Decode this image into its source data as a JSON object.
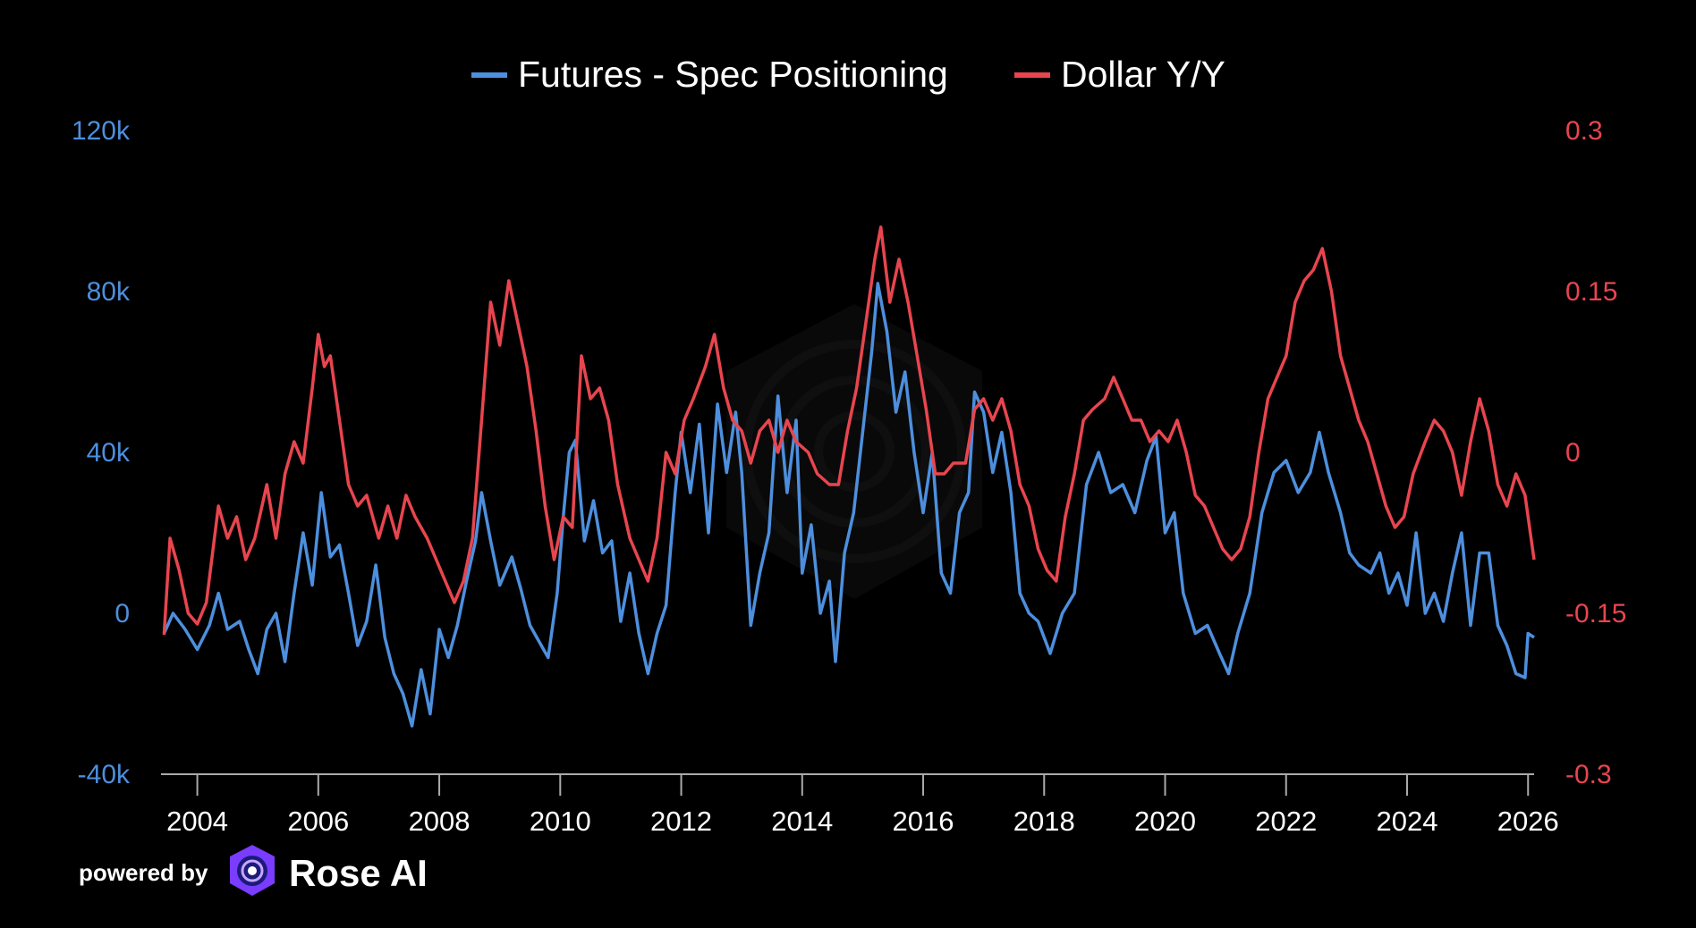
{
  "chart_data": {
    "type": "line",
    "x_range": [
      2003.4,
      2026.1
    ],
    "x_ticks": [
      "2004",
      "2006",
      "2008",
      "2010",
      "2012",
      "2014",
      "2016",
      "2018",
      "2020",
      "2022",
      "2024",
      "2026"
    ],
    "y_left": {
      "range": [
        -40000,
        120000
      ],
      "ticks": [
        "120k",
        "80k",
        "40k",
        "0",
        "-40k"
      ],
      "color": "#4d8fdd"
    },
    "y_right": {
      "range": [
        -0.3,
        0.3
      ],
      "ticks": [
        "0.3",
        "0.15",
        "0",
        "-0.15",
        "-0.3"
      ],
      "color": "#e8454f"
    },
    "legend_position": "top-center",
    "grid": false,
    "series": [
      {
        "name": "Futures - Spec Positioning",
        "axis": "left",
        "color": "#4d8fdd",
        "points": [
          [
            2003.45,
            -5000
          ],
          [
            2003.6,
            0
          ],
          [
            2003.8,
            -4000
          ],
          [
            2004.0,
            -9000
          ],
          [
            2004.2,
            -3000
          ],
          [
            2004.35,
            5000
          ],
          [
            2004.5,
            -4000
          ],
          [
            2004.7,
            -2000
          ],
          [
            2004.85,
            -9000
          ],
          [
            2005.0,
            -15000
          ],
          [
            2005.15,
            -4000
          ],
          [
            2005.3,
            0
          ],
          [
            2005.45,
            -12000
          ],
          [
            2005.6,
            5000
          ],
          [
            2005.75,
            20000
          ],
          [
            2005.9,
            7000
          ],
          [
            2006.05,
            30000
          ],
          [
            2006.2,
            14000
          ],
          [
            2006.35,
            17000
          ],
          [
            2006.5,
            5000
          ],
          [
            2006.65,
            -8000
          ],
          [
            2006.8,
            -2000
          ],
          [
            2006.95,
            12000
          ],
          [
            2007.1,
            -6000
          ],
          [
            2007.25,
            -15000
          ],
          [
            2007.4,
            -20000
          ],
          [
            2007.55,
            -28000
          ],
          [
            2007.7,
            -14000
          ],
          [
            2007.85,
            -25000
          ],
          [
            2008.0,
            -4000
          ],
          [
            2008.15,
            -11000
          ],
          [
            2008.3,
            -3000
          ],
          [
            2008.45,
            8000
          ],
          [
            2008.6,
            18000
          ],
          [
            2008.7,
            30000
          ],
          [
            2008.85,
            18000
          ],
          [
            2009.0,
            7000
          ],
          [
            2009.2,
            14000
          ],
          [
            2009.35,
            6000
          ],
          [
            2009.5,
            -3000
          ],
          [
            2009.65,
            -7000
          ],
          [
            2009.8,
            -11000
          ],
          [
            2009.95,
            5000
          ],
          [
            2010.05,
            24000
          ],
          [
            2010.15,
            40000
          ],
          [
            2010.25,
            43000
          ],
          [
            2010.4,
            18000
          ],
          [
            2010.55,
            28000
          ],
          [
            2010.7,
            15000
          ],
          [
            2010.85,
            18000
          ],
          [
            2011.0,
            -2000
          ],
          [
            2011.15,
            10000
          ],
          [
            2011.3,
            -5000
          ],
          [
            2011.45,
            -15000
          ],
          [
            2011.6,
            -5000
          ],
          [
            2011.75,
            2000
          ],
          [
            2011.9,
            30000
          ],
          [
            2012.0,
            45000
          ],
          [
            2012.15,
            30000
          ],
          [
            2012.3,
            47000
          ],
          [
            2012.45,
            20000
          ],
          [
            2012.6,
            52000
          ],
          [
            2012.75,
            35000
          ],
          [
            2012.9,
            50000
          ],
          [
            2013.0,
            35000
          ],
          [
            2013.15,
            -3000
          ],
          [
            2013.3,
            10000
          ],
          [
            2013.45,
            20000
          ],
          [
            2013.6,
            54000
          ],
          [
            2013.75,
            30000
          ],
          [
            2013.9,
            48000
          ],
          [
            2014.0,
            10000
          ],
          [
            2014.15,
            22000
          ],
          [
            2014.3,
            0
          ],
          [
            2014.45,
            8000
          ],
          [
            2014.55,
            -12000
          ],
          [
            2014.7,
            15000
          ],
          [
            2014.85,
            25000
          ],
          [
            2015.0,
            45000
          ],
          [
            2015.15,
            65000
          ],
          [
            2015.25,
            82000
          ],
          [
            2015.4,
            70000
          ],
          [
            2015.55,
            50000
          ],
          [
            2015.7,
            60000
          ],
          [
            2015.85,
            40000
          ],
          [
            2016.0,
            25000
          ],
          [
            2016.15,
            40000
          ],
          [
            2016.3,
            10000
          ],
          [
            2016.45,
            5000
          ],
          [
            2016.6,
            25000
          ],
          [
            2016.75,
            30000
          ],
          [
            2016.85,
            55000
          ],
          [
            2017.0,
            50000
          ],
          [
            2017.15,
            35000
          ],
          [
            2017.3,
            45000
          ],
          [
            2017.45,
            30000
          ],
          [
            2017.6,
            5000
          ],
          [
            2017.75,
            0
          ],
          [
            2017.9,
            -2000
          ],
          [
            2018.1,
            -10000
          ],
          [
            2018.3,
            0
          ],
          [
            2018.5,
            5000
          ],
          [
            2018.7,
            32000
          ],
          [
            2018.9,
            40000
          ],
          [
            2019.1,
            30000
          ],
          [
            2019.3,
            32000
          ],
          [
            2019.5,
            25000
          ],
          [
            2019.7,
            38000
          ],
          [
            2019.85,
            44000
          ],
          [
            2020.0,
            20000
          ],
          [
            2020.15,
            25000
          ],
          [
            2020.3,
            5000
          ],
          [
            2020.5,
            -5000
          ],
          [
            2020.7,
            -3000
          ],
          [
            2020.9,
            -10000
          ],
          [
            2021.05,
            -15000
          ],
          [
            2021.2,
            -5000
          ],
          [
            2021.4,
            5000
          ],
          [
            2021.6,
            25000
          ],
          [
            2021.8,
            35000
          ],
          [
            2022.0,
            38000
          ],
          [
            2022.2,
            30000
          ],
          [
            2022.4,
            35000
          ],
          [
            2022.55,
            45000
          ],
          [
            2022.7,
            35000
          ],
          [
            2022.9,
            25000
          ],
          [
            2023.05,
            15000
          ],
          [
            2023.2,
            12000
          ],
          [
            2023.4,
            10000
          ],
          [
            2023.55,
            15000
          ],
          [
            2023.7,
            5000
          ],
          [
            2023.85,
            10000
          ],
          [
            2024.0,
            2000
          ],
          [
            2024.15,
            20000
          ],
          [
            2024.3,
            0
          ],
          [
            2024.45,
            5000
          ],
          [
            2024.6,
            -2000
          ],
          [
            2024.75,
            10000
          ],
          [
            2024.9,
            20000
          ],
          [
            2025.05,
            -3000
          ],
          [
            2025.2,
            15000
          ],
          [
            2025.35,
            15000
          ],
          [
            2025.5,
            -3000
          ],
          [
            2025.65,
            -8000
          ],
          [
            2025.8,
            -15000
          ],
          [
            2025.95,
            -16000
          ],
          [
            2026.0,
            -5000
          ],
          [
            2026.1,
            -6000
          ]
        ]
      },
      {
        "name": "Dollar Y/Y",
        "axis": "right",
        "color": "#e8454f",
        "points": [
          [
            2003.45,
            -0.17
          ],
          [
            2003.55,
            -0.08
          ],
          [
            2003.7,
            -0.11
          ],
          [
            2003.85,
            -0.15
          ],
          [
            2004.0,
            -0.16
          ],
          [
            2004.15,
            -0.14
          ],
          [
            2004.35,
            -0.05
          ],
          [
            2004.5,
            -0.08
          ],
          [
            2004.65,
            -0.06
          ],
          [
            2004.8,
            -0.1
          ],
          [
            2004.95,
            -0.08
          ],
          [
            2005.15,
            -0.03
          ],
          [
            2005.3,
            -0.08
          ],
          [
            2005.45,
            -0.02
          ],
          [
            2005.6,
            0.01
          ],
          [
            2005.75,
            -0.01
          ],
          [
            2005.9,
            0.06
          ],
          [
            2006.0,
            0.11
          ],
          [
            2006.1,
            0.08
          ],
          [
            2006.2,
            0.09
          ],
          [
            2006.35,
            0.03
          ],
          [
            2006.5,
            -0.03
          ],
          [
            2006.65,
            -0.05
          ],
          [
            2006.8,
            -0.04
          ],
          [
            2007.0,
            -0.08
          ],
          [
            2007.15,
            -0.05
          ],
          [
            2007.3,
            -0.08
          ],
          [
            2007.45,
            -0.04
          ],
          [
            2007.6,
            -0.06
          ],
          [
            2007.8,
            -0.08
          ],
          [
            2007.95,
            -0.1
          ],
          [
            2008.1,
            -0.12
          ],
          [
            2008.25,
            -0.14
          ],
          [
            2008.4,
            -0.12
          ],
          [
            2008.55,
            -0.08
          ],
          [
            2008.7,
            0.03
          ],
          [
            2008.85,
            0.14
          ],
          [
            2009.0,
            0.1
          ],
          [
            2009.15,
            0.16
          ],
          [
            2009.3,
            0.12
          ],
          [
            2009.45,
            0.08
          ],
          [
            2009.6,
            0.02
          ],
          [
            2009.75,
            -0.05
          ],
          [
            2009.9,
            -0.1
          ],
          [
            2010.05,
            -0.06
          ],
          [
            2010.2,
            -0.07
          ],
          [
            2010.35,
            0.09
          ],
          [
            2010.5,
            0.05
          ],
          [
            2010.65,
            0.06
          ],
          [
            2010.8,
            0.03
          ],
          [
            2010.95,
            -0.03
          ],
          [
            2011.15,
            -0.08
          ],
          [
            2011.3,
            -0.1
          ],
          [
            2011.45,
            -0.12
          ],
          [
            2011.6,
            -0.08
          ],
          [
            2011.75,
            0.0
          ],
          [
            2011.9,
            -0.02
          ],
          [
            2012.05,
            0.03
          ],
          [
            2012.2,
            0.05
          ],
          [
            2012.4,
            0.08
          ],
          [
            2012.55,
            0.11
          ],
          [
            2012.7,
            0.06
          ],
          [
            2012.85,
            0.03
          ],
          [
            2013.0,
            0.02
          ],
          [
            2013.15,
            -0.01
          ],
          [
            2013.3,
            0.02
          ],
          [
            2013.45,
            0.03
          ],
          [
            2013.6,
            0.0
          ],
          [
            2013.75,
            0.03
          ],
          [
            2013.9,
            0.01
          ],
          [
            2014.1,
            0.0
          ],
          [
            2014.25,
            -0.02
          ],
          [
            2014.45,
            -0.03
          ],
          [
            2014.6,
            -0.03
          ],
          [
            2014.75,
            0.02
          ],
          [
            2014.9,
            0.06
          ],
          [
            2015.05,
            0.12
          ],
          [
            2015.2,
            0.18
          ],
          [
            2015.3,
            0.21
          ],
          [
            2015.45,
            0.14
          ],
          [
            2015.6,
            0.18
          ],
          [
            2015.75,
            0.14
          ],
          [
            2015.9,
            0.09
          ],
          [
            2016.05,
            0.04
          ],
          [
            2016.2,
            -0.02
          ],
          [
            2016.35,
            -0.02
          ],
          [
            2016.5,
            -0.01
          ],
          [
            2016.7,
            -0.01
          ],
          [
            2016.85,
            0.04
          ],
          [
            2017.0,
            0.05
          ],
          [
            2017.15,
            0.03
          ],
          [
            2017.3,
            0.05
          ],
          [
            2017.45,
            0.02
          ],
          [
            2017.6,
            -0.03
          ],
          [
            2017.75,
            -0.05
          ],
          [
            2017.9,
            -0.09
          ],
          [
            2018.05,
            -0.11
          ],
          [
            2018.2,
            -0.12
          ],
          [
            2018.35,
            -0.06
          ],
          [
            2018.5,
            -0.02
          ],
          [
            2018.65,
            0.03
          ],
          [
            2018.8,
            0.04
          ],
          [
            2019.0,
            0.05
          ],
          [
            2019.15,
            0.07
          ],
          [
            2019.3,
            0.05
          ],
          [
            2019.45,
            0.03
          ],
          [
            2019.6,
            0.03
          ],
          [
            2019.75,
            0.01
          ],
          [
            2019.9,
            0.02
          ],
          [
            2020.05,
            0.01
          ],
          [
            2020.2,
            0.03
          ],
          [
            2020.35,
            0.0
          ],
          [
            2020.5,
            -0.04
          ],
          [
            2020.65,
            -0.05
          ],
          [
            2020.8,
            -0.07
          ],
          [
            2020.95,
            -0.09
          ],
          [
            2021.1,
            -0.1
          ],
          [
            2021.25,
            -0.09
          ],
          [
            2021.4,
            -0.06
          ],
          [
            2021.55,
            0.0
          ],
          [
            2021.7,
            0.05
          ],
          [
            2021.85,
            0.07
          ],
          [
            2022.0,
            0.09
          ],
          [
            2022.15,
            0.14
          ],
          [
            2022.3,
            0.16
          ],
          [
            2022.45,
            0.17
          ],
          [
            2022.6,
            0.19
          ],
          [
            2022.75,
            0.15
          ],
          [
            2022.9,
            0.09
          ],
          [
            2023.05,
            0.06
          ],
          [
            2023.2,
            0.03
          ],
          [
            2023.35,
            0.01
          ],
          [
            2023.5,
            -0.02
          ],
          [
            2023.65,
            -0.05
          ],
          [
            2023.8,
            -0.07
          ],
          [
            2023.95,
            -0.06
          ],
          [
            2024.1,
            -0.02
          ],
          [
            2024.3,
            0.01
          ],
          [
            2024.45,
            0.03
          ],
          [
            2024.6,
            0.02
          ],
          [
            2024.75,
            0.0
          ],
          [
            2024.9,
            -0.04
          ],
          [
            2025.05,
            0.01
          ],
          [
            2025.2,
            0.05
          ],
          [
            2025.35,
            0.02
          ],
          [
            2025.5,
            -0.03
          ],
          [
            2025.65,
            -0.05
          ],
          [
            2025.8,
            -0.02
          ],
          [
            2025.95,
            -0.04
          ],
          [
            2026.05,
            -0.08
          ],
          [
            2026.1,
            -0.1
          ]
        ]
      }
    ]
  },
  "branding": {
    "powered_by": "powered by",
    "brand_name": "Rose AI"
  }
}
